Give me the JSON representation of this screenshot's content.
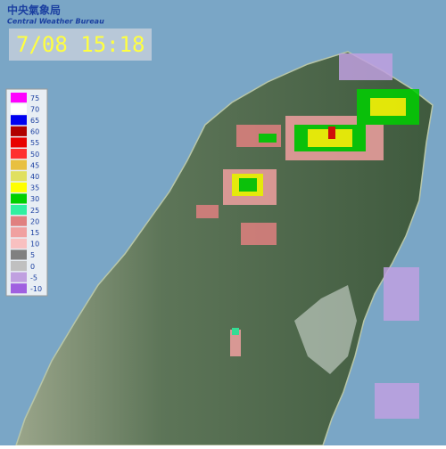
{
  "header": {
    "title_zh": "中央氣象局",
    "title_en": "Central Weather Bureau"
  },
  "timestamp": "7/08 15:18",
  "legend": {
    "items": [
      {
        "label": 75,
        "color": "#ff00ff"
      },
      {
        "label": 70,
        "color": "#ffffff"
      },
      {
        "label": 65,
        "color": "#0000f0"
      },
      {
        "label": 60,
        "color": "#b00000"
      },
      {
        "label": 55,
        "color": "#e80000"
      },
      {
        "label": 50,
        "color": "#ff3030"
      },
      {
        "label": 45,
        "color": "#e8c040"
      },
      {
        "label": 40,
        "color": "#e0e060"
      },
      {
        "label": 35,
        "color": "#ffff00"
      },
      {
        "label": 30,
        "color": "#00d000"
      },
      {
        "label": 25,
        "color": "#30f0a0"
      },
      {
        "label": 20,
        "color": "#e08080"
      },
      {
        "label": 15,
        "color": "#f0a0a0"
      },
      {
        "label": 10,
        "color": "#f8c0c0"
      },
      {
        "label": 5,
        "color": "#808080"
      },
      {
        "label": 0,
        "color": "#c0c0c0"
      },
      {
        "label": -5,
        "color": "#c0a0e0"
      },
      {
        "label": -10,
        "color": "#a060e0"
      }
    ]
  }
}
